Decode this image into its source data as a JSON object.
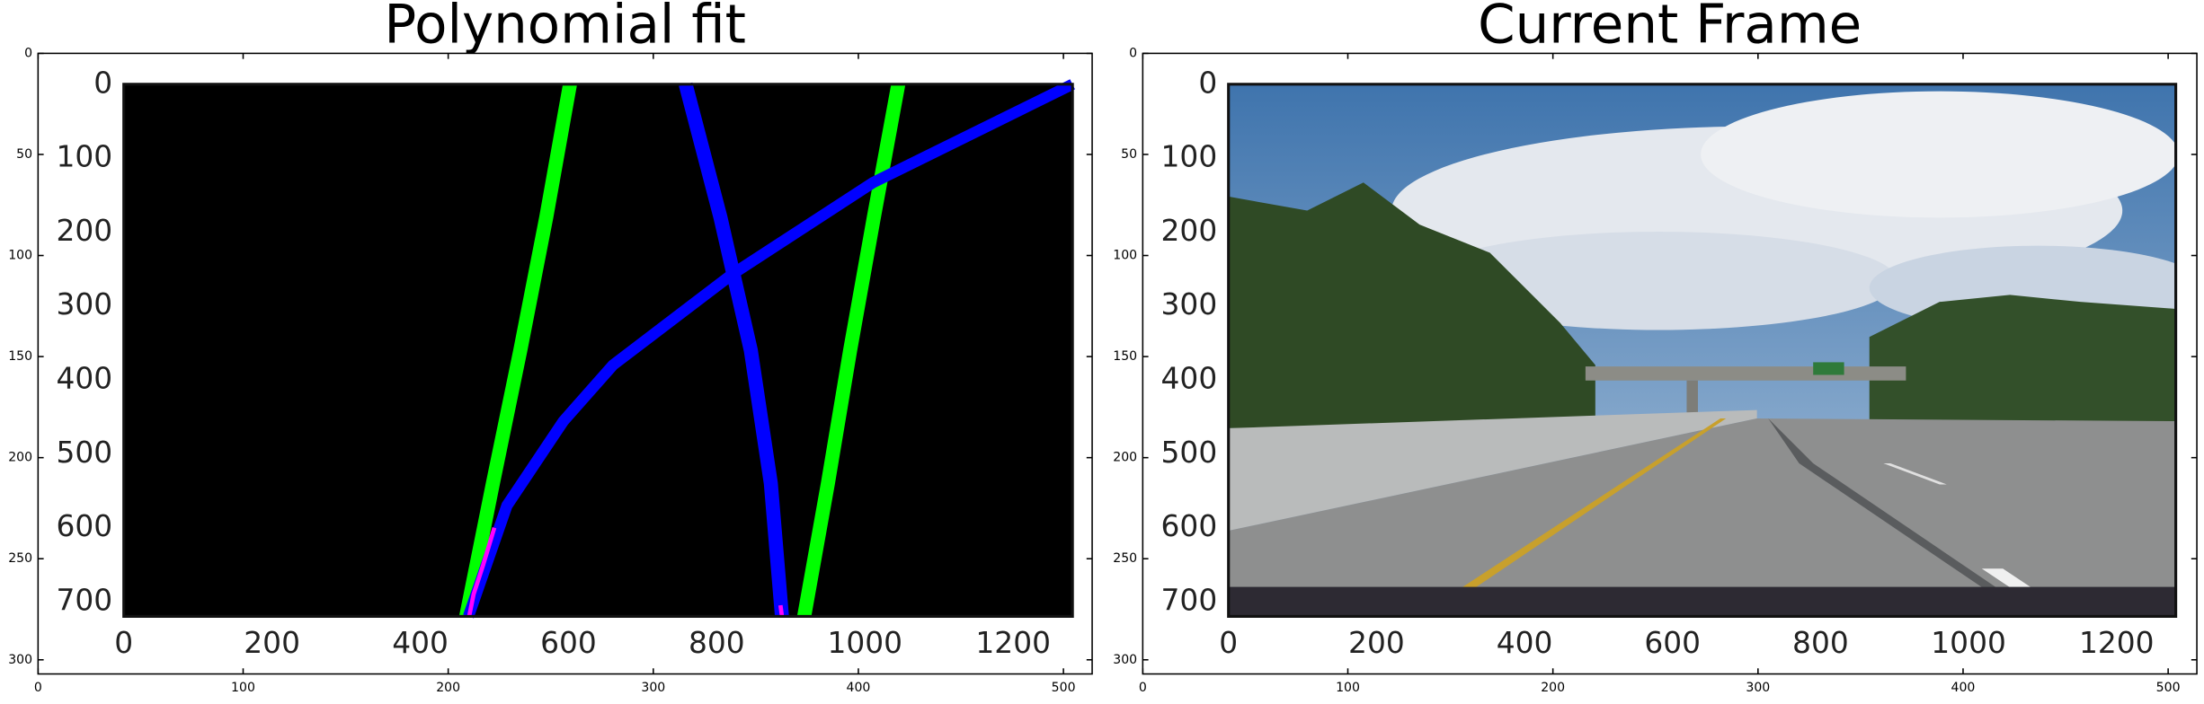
{
  "chart_data": [
    {
      "type": "image",
      "title": "Polynomial fit",
      "xlim": [
        0,
        514
      ],
      "ylim": [
        307,
        0
      ],
      "xticks": [
        0,
        100,
        200,
        300,
        400,
        500
      ],
      "yticks": [
        0,
        50,
        100,
        150,
        200,
        250,
        300
      ],
      "inset": {
        "type": "line",
        "background": "#000000",
        "xlim": [
          0,
          1280
        ],
        "ylim": [
          720,
          0
        ],
        "xticks": [
          0,
          200,
          400,
          600,
          800,
          1000,
          1200
        ],
        "yticks": [
          0,
          100,
          200,
          300,
          400,
          500,
          600,
          700
        ],
        "series": [
          {
            "color": "#00ff00",
            "width": 10,
            "x": [
              602,
              570,
              535,
              498,
              462
            ],
            "values": [
              0,
              180,
              360,
              540,
              720
            ]
          },
          {
            "color": "#00ff00",
            "width": 10,
            "x": [
              1045,
              1012,
              980,
              950,
              918
            ],
            "values": [
              0,
              180,
              360,
              540,
              720
            ]
          },
          {
            "color": "#0000ff",
            "width": 10,
            "x": [
              758,
              805,
              846,
              873,
              888
            ],
            "values": [
              0,
              180,
              360,
              540,
              720
            ]
          },
          {
            "color": "#0000ff",
            "width": 8,
            "x": [
              1280,
              1011,
              821,
              660,
              593,
              517,
              465
            ],
            "values": [
              0,
              133,
              257,
              380,
              456,
              570,
              720
            ]
          },
          {
            "color": "#ff00ff",
            "width": 3,
            "x": [
              500,
              485,
              472,
              466
            ],
            "values": [
              600,
              650,
              690,
              720
            ]
          },
          {
            "color": "#ff00ff",
            "width": 3,
            "x": [
              886,
              888
            ],
            "values": [
              705,
              720
            ]
          }
        ]
      }
    },
    {
      "type": "image",
      "title": "Current Frame",
      "xlim": [
        0,
        514
      ],
      "ylim": [
        307,
        0
      ],
      "xticks": [
        0,
        100,
        200,
        300,
        400,
        500
      ],
      "yticks": [
        0,
        50,
        100,
        150,
        200,
        250,
        300
      ],
      "inset": {
        "type": "photo",
        "xlim": [
          0,
          1280
        ],
        "ylim": [
          720,
          0
        ],
        "xticks": [
          0,
          200,
          400,
          600,
          800,
          1000,
          1200
        ],
        "yticks": [
          0,
          100,
          200,
          300,
          400,
          500,
          600,
          700
        ]
      }
    }
  ]
}
